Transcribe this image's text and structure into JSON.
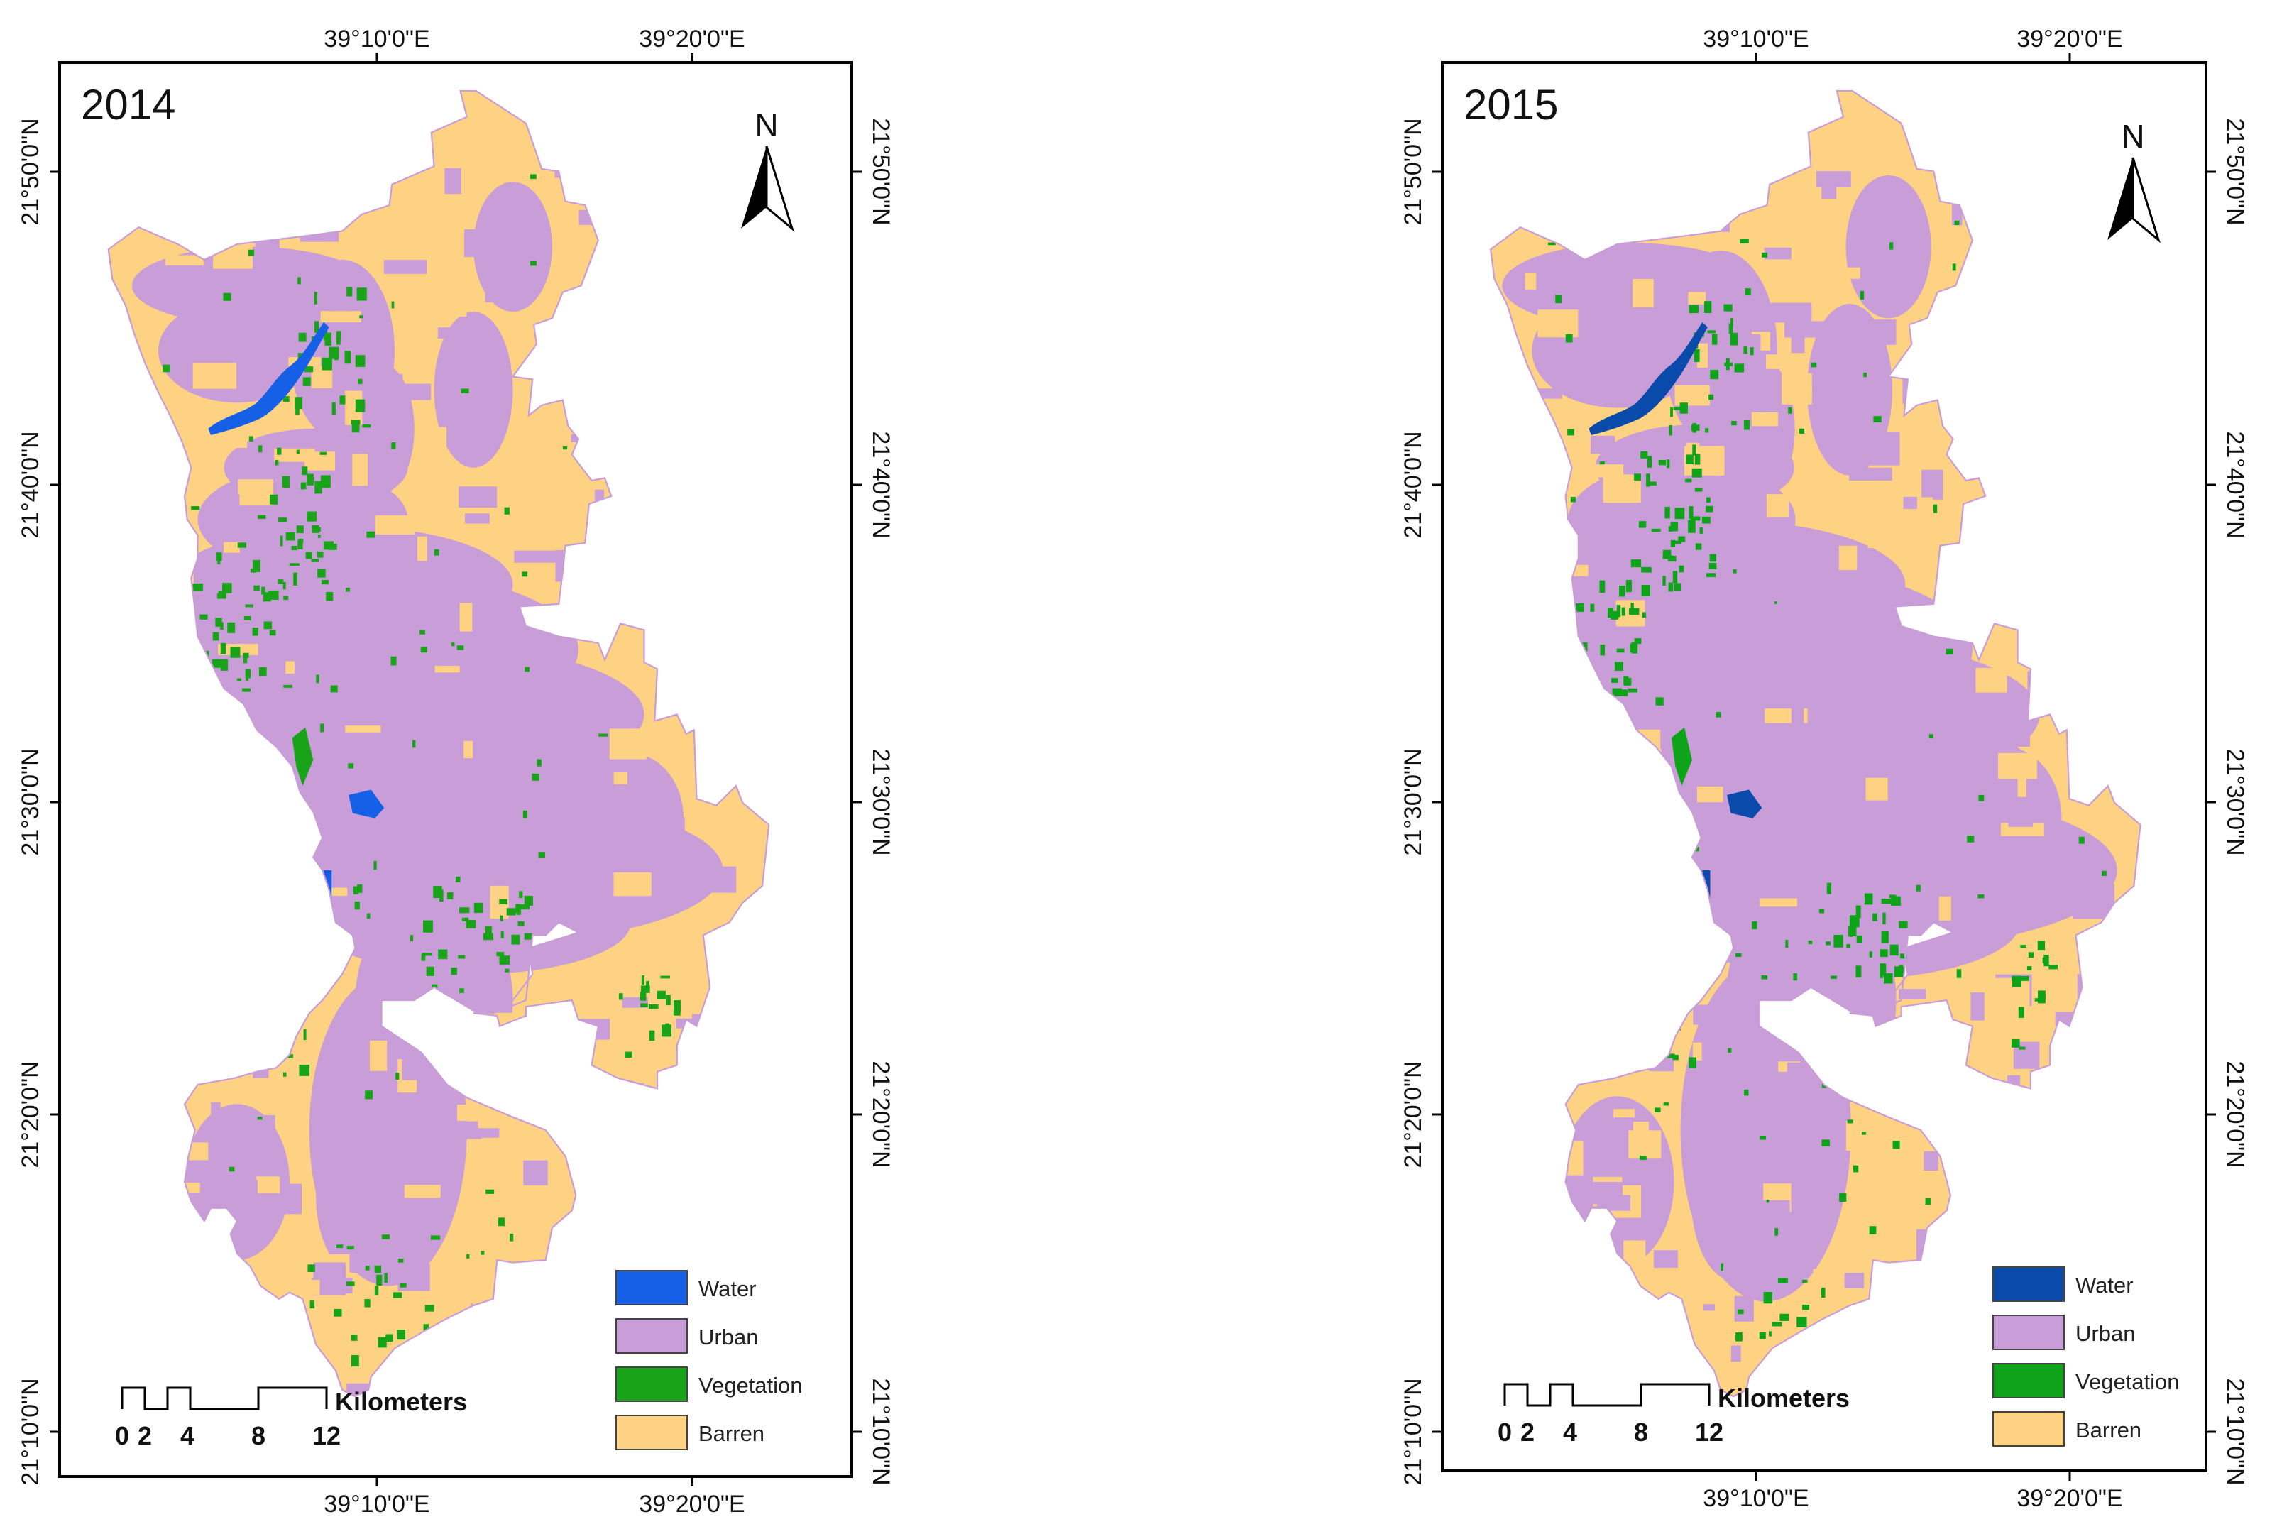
{
  "maps": [
    {
      "year": "2014",
      "colors": {
        "water": "#1660e8",
        "urban": "#c89dd8",
        "vegetation": "#19a319",
        "barren": "#fdd283"
      },
      "top_lon_labels": [
        "39°10'0\"E",
        "39°20'0\"E"
      ],
      "bottom_lon_labels": [
        "39°10'0\"E",
        "39°20'0\"E"
      ],
      "left_lat_labels": [
        "21°50'0\"N",
        "21°40'0\"N",
        "21°30'0\"N",
        "21°20'0\"N",
        "21°10'0\"N"
      ],
      "right_lat_labels": [
        "21°50'0\"N",
        "21°40'0\"N",
        "21°30'0\"N",
        "21°20'0\"N",
        "21°10'0\"N"
      ],
      "north_label": "N",
      "legend": [
        {
          "label": "Water",
          "color": "#1660e8"
        },
        {
          "label": "Urban",
          "color": "#c89dd8"
        },
        {
          "label": "Vegetation",
          "color": "#19a319"
        },
        {
          "label": "Barren",
          "color": "#fdd283"
        }
      ],
      "scale_unit": "Kilometers",
      "scale_ticks": [
        "0",
        "2",
        "4",
        "8",
        "12"
      ]
    },
    {
      "year": "2015",
      "colors": {
        "water": "#0a4aaa",
        "urban": "#c89dd8",
        "vegetation": "#0fa31a",
        "barren": "#fdd283"
      },
      "top_lon_labels": [
        "39°10'0\"E",
        "39°20'0\"E"
      ],
      "bottom_lon_labels": [
        "39°10'0\"E",
        "39°20'0\"E"
      ],
      "left_lat_labels": [
        "21°50'0\"N",
        "21°40'0\"N",
        "21°30'0\"N",
        "21°20'0\"N",
        "21°10'0\"N"
      ],
      "right_lat_labels": [
        "21°50'0\"N",
        "21°40'0\"N",
        "21°30'0\"N",
        "21°20'0\"N",
        "21°10'0\"N"
      ],
      "north_label": "N",
      "legend": [
        {
          "label": "Water",
          "color": "#0a4aaa"
        },
        {
          "label": "Urban",
          "color": "#c89dd8"
        },
        {
          "label": "Vegetation",
          "color": "#0fa31a"
        },
        {
          "label": "Barren",
          "color": "#fdd283"
        }
      ],
      "scale_unit": "Kilometers",
      "scale_ticks": [
        "0",
        "2",
        "4",
        "8",
        "12"
      ]
    }
  ]
}
